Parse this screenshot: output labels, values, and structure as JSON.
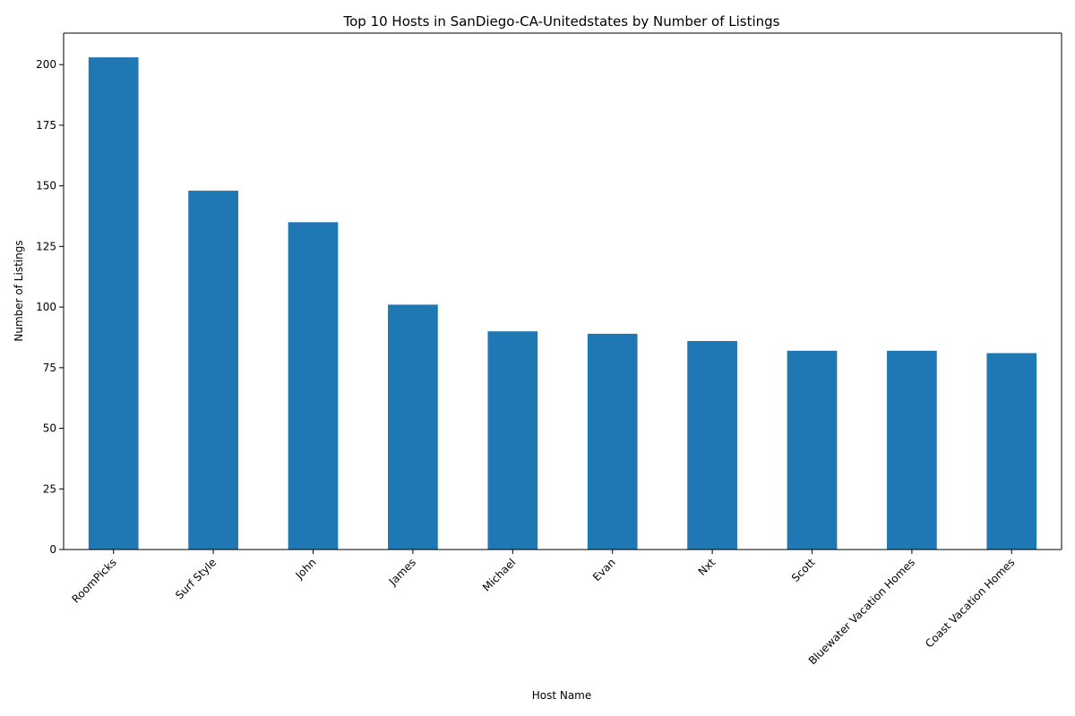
{
  "chart_data": {
    "type": "bar",
    "title": "Top 10 Hosts in SanDiego-CA-Unitedstates by Number of Listings",
    "xlabel": "Host Name",
    "ylabel": "Number of Listings",
    "categories": [
      "RoomPicks",
      "Surf Style",
      "John",
      "James",
      "Michael",
      "Evan",
      "Nxt",
      "Scott",
      "Bluewater Vacation Homes",
      "Coast Vacation Homes"
    ],
    "values": [
      203,
      148,
      135,
      101,
      90,
      89,
      86,
      82,
      82,
      81
    ],
    "ylim": [
      0,
      213
    ],
    "yticks": [
      0,
      25,
      50,
      75,
      100,
      125,
      150,
      175,
      200
    ],
    "grid": false,
    "legend": "none",
    "bar_color": "#1f77b4"
  }
}
